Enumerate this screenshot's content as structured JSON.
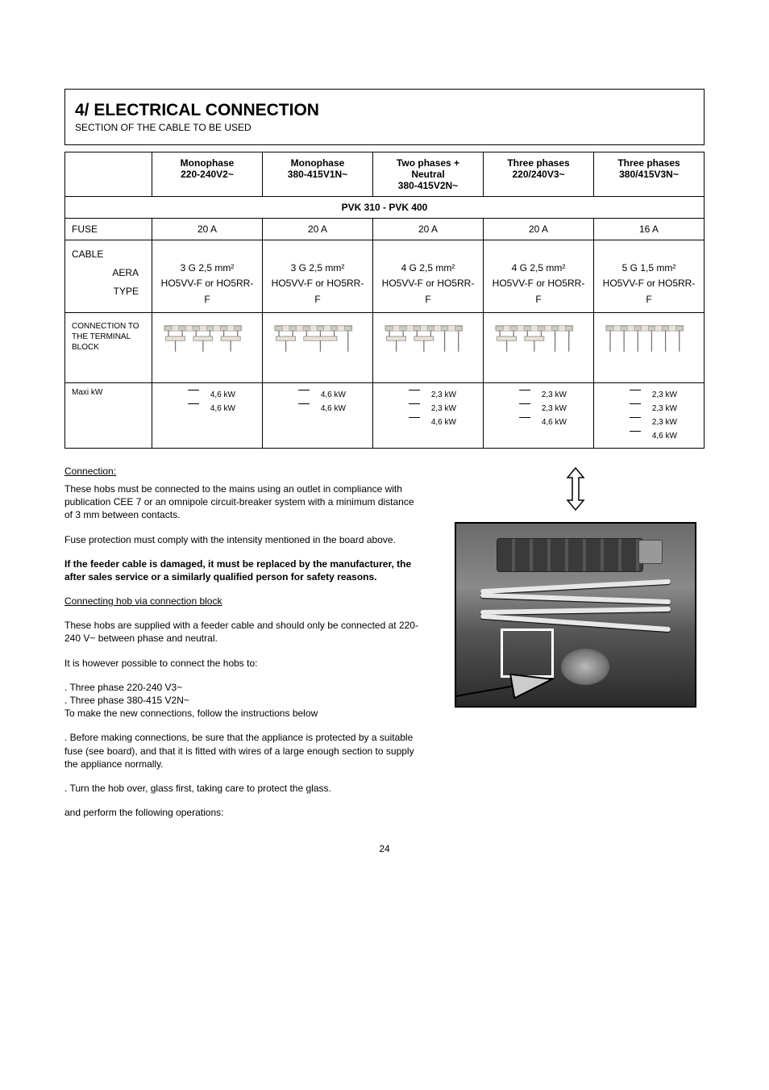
{
  "title": {
    "main": "4/ ELECTRICAL CONNECTION",
    "sub": "SECTION OF THE CABLE TO BE USED"
  },
  "columns": {
    "c1": {
      "l1": "Monophase",
      "l2": "220-240V2~"
    },
    "c2": {
      "l1": "Monophase",
      "l2": "380-415V1N~"
    },
    "c3": {
      "l1": "Two phases +",
      "l2": "Neutral",
      "l3": "380-415V2N~"
    },
    "c4": {
      "l1": "Three phases",
      "l2": "220/240V3~"
    },
    "c5": {
      "l1": "Three phases",
      "l2": "380/415V3N~"
    }
  },
  "model_row": "PVK 310 - PVK  400",
  "rows": {
    "fuse_label": "FUSE",
    "fuse": {
      "c1": "20 A",
      "c2": "20 A",
      "c3": "20 A",
      "c4": "20 A",
      "c5": "16 A"
    },
    "cable_label": "CABLE",
    "area_label": "AERA",
    "type_label": "TYPE",
    "area": {
      "c1": "3 G 2,5 mm²",
      "c2": "3 G 2,5 mm²",
      "c3": "4 G 2,5 mm²",
      "c4": "4 G 2,5 mm²",
      "c5": "5 G 1,5 mm²"
    },
    "type": {
      "c1": "HO5VV-F or HO5RR-F",
      "c2": "HO5VV-F or HO5RR-F",
      "c3": "HO5VV-F or HO5RR-F",
      "c4": "HO5VV-F or HO5RR-F",
      "c5": "HO5VV-F or HO5RR-F"
    },
    "conn_label": "CONNECTION TO THE TERMINAL BLOCK",
    "kw_label": "Maxi kW",
    "kw": {
      "c1": [
        [
          "",
          "4,6 kW"
        ],
        [
          "",
          "4,6 kW"
        ]
      ],
      "c2": [
        [
          "",
          "4,6 kW"
        ],
        [
          "",
          "4,6 kW"
        ]
      ],
      "c3": [
        [
          "",
          "2,3 kW"
        ],
        [
          "",
          "2,3 kW"
        ],
        [
          "",
          "4,6 kW"
        ]
      ],
      "c4": [
        [
          "",
          "2,3 kW"
        ],
        [
          "",
          "2,3 kW"
        ],
        [
          "",
          "4,6 kW"
        ]
      ],
      "c5": [
        [
          "",
          "2,3 kW"
        ],
        [
          "",
          "2,3 kW"
        ],
        [
          "",
          "2,3 kW"
        ],
        [
          "",
          "4,6 kW"
        ]
      ]
    }
  },
  "terminal": {
    "bridges": {
      "c1": [
        [
          1,
          2
        ],
        [
          3,
          4
        ],
        [
          5,
          6
        ]
      ],
      "c2": [
        [
          1,
          2
        ],
        [
          3,
          4,
          5
        ],
        [
          6
        ]
      ],
      "c3": [
        [
          1,
          2
        ],
        [
          3,
          4
        ],
        [
          5
        ],
        [
          6
        ]
      ],
      "c4": [
        [
          1,
          2
        ],
        [
          3,
          4
        ],
        [
          5
        ],
        [
          6
        ]
      ],
      "c5": [
        [
          1
        ],
        [
          2
        ],
        [
          3
        ],
        [
          4
        ],
        [
          5
        ],
        [
          6
        ]
      ]
    },
    "bg": "#e8e4da",
    "mid": "#d0cdc3",
    "deep": "#b5b2a8",
    "stroke": "#7a776e"
  },
  "left": {
    "h1": "Connection:",
    "p1": "These hobs must be connected to the mains using an outlet in compliance with publication CEE 7 or an omnipole circuit-breaker system with a minimum distance of 3 mm between contacts.",
    "p2": "Fuse protection must comply with the intensity mentioned in the board above.",
    "p3": "If the feeder cable is damaged, it must be replaced by the manufacturer, the after sales service or a similarly qualified person for safety reasons.",
    "h2": "Connecting hob via connection block",
    "p4": "These hobs are supplied with a feeder cable and should only be connected at 220-240 V~ between phase and neutral."
  },
  "right": {
    "p1": "It is however possible to connect the hobs to:",
    "l1": ". Three phase 220-240 V3~",
    "l2": ". Three phase 380-415 V2N~",
    "p2": "To make the new connections, follow the instructions below",
    "s1": ". Before making connections, be sure that the appliance is protected by a suitable fuse (see board), and that it is fitted with wires of a large enough section to supply the appliance normally.",
    "s2": ". Turn the hob over, glass first, taking care to protect the glass.",
    "op": "and perform the following operations:"
  },
  "pagenum": "24",
  "arrow_stroke": "#000000",
  "big_arrow_fill": "#cccccc"
}
